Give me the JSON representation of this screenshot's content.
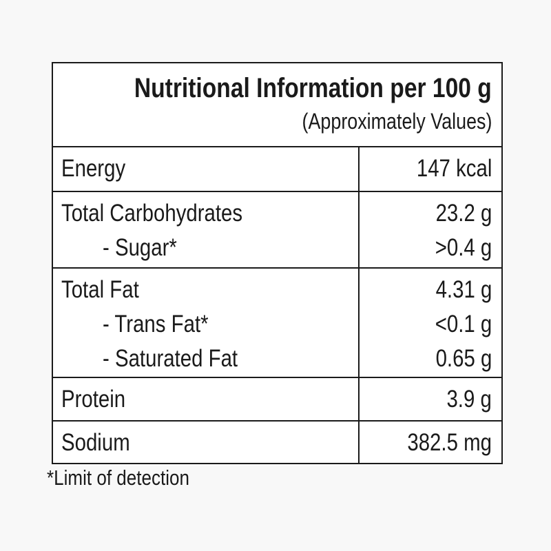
{
  "header": {
    "title": "Nutritional Information per 100 g",
    "subtitle": "(Approximately Values)"
  },
  "table": {
    "groups": [
      {
        "labels": [
          "Energy"
        ],
        "values": [
          "147 kcal"
        ]
      },
      {
        "labels": [
          "Total Carbohydrates",
          "- Sugar*"
        ],
        "values": [
          "23.2 g",
          ">0.4 g"
        ]
      },
      {
        "labels": [
          "Total Fat",
          "- Trans Fat*",
          "- Saturated Fat"
        ],
        "values": [
          "4.31 g",
          "<0.1 g",
          "0.65 g"
        ]
      },
      {
        "labels": [
          "Protein"
        ],
        "values": [
          "3.9 g"
        ]
      },
      {
        "labels": [
          "Sodium"
        ],
        "values": [
          "382.5 mg"
        ]
      }
    ]
  },
  "footnote": "*Limit of detection"
}
